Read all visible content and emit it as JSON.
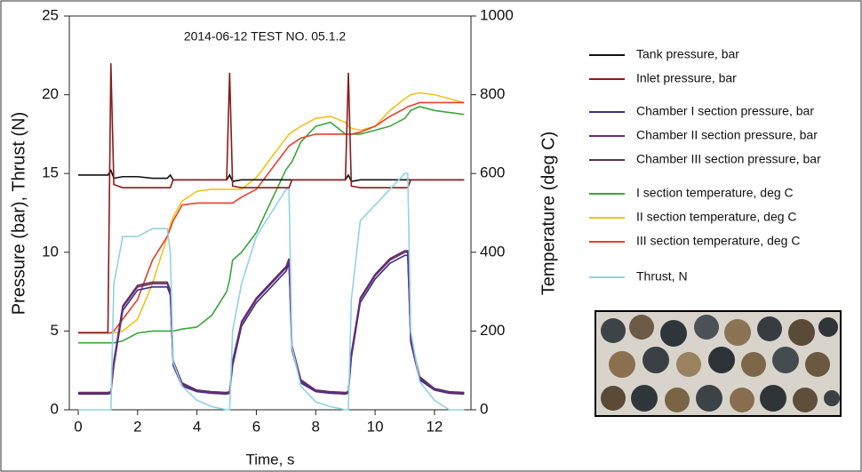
{
  "chart_data": {
    "type": "line",
    "title": "2014-06-12 TEST NO. 05.1.2",
    "xlabel": "Time, s",
    "ylabel": "Pressure (bar), Thrust (N)",
    "y2label": "Temperature (deg C)",
    "x": [
      0,
      0.5,
      1,
      1.1,
      1.2,
      1.5,
      2,
      2.5,
      3,
      3.1,
      3.2,
      3.5,
      4,
      4.5,
      5,
      5.1,
      5.2,
      5.5,
      6,
      6.5,
      7,
      7.1,
      7.2,
      7.5,
      8,
      8.5,
      9,
      9.1,
      9.2,
      9.5,
      10,
      10.5,
      11,
      11.1,
      11.2,
      11.5,
      12,
      12.5,
      13
    ],
    "xlim": [
      -0.3,
      13.23
    ],
    "xticks": [
      0,
      2,
      4,
      6,
      8,
      10,
      12
    ],
    "ylim": [
      0,
      25
    ],
    "yticks": [
      0,
      5,
      10,
      15,
      20,
      25
    ],
    "y2lim": [
      0,
      1000
    ],
    "y2ticks": [
      0,
      200,
      400,
      600,
      800,
      1000
    ],
    "series": [
      {
        "name": "Tank pressure, bar",
        "color": "#111111",
        "values": [
          14.9,
          14.9,
          14.9,
          15.2,
          14.7,
          14.8,
          14.8,
          14.7,
          14.7,
          14.9,
          14.6,
          14.6,
          14.6,
          14.6,
          14.6,
          14.9,
          14.5,
          14.6,
          14.6,
          14.6,
          14.6,
          14.6,
          14.6,
          14.6,
          14.6,
          14.6,
          14.6,
          14.9,
          14.5,
          14.6,
          14.6,
          14.6,
          14.6,
          14.6,
          14.6,
          14.6,
          14.6,
          14.6,
          14.6
        ]
      },
      {
        "name": "Inlet pressure, bar",
        "color": "#8b1a1a",
        "values": [
          4.9,
          4.9,
          4.9,
          22,
          14.3,
          14.1,
          14.1,
          14.1,
          14.1,
          14.1,
          14.6,
          14.6,
          14.6,
          14.6,
          14.6,
          21.4,
          14.2,
          14.1,
          14.1,
          14.1,
          14.1,
          14.1,
          14.6,
          14.6,
          14.6,
          14.6,
          14.6,
          21.4,
          14.2,
          14.1,
          14.1,
          14.1,
          14.1,
          14.1,
          14.6,
          14.6,
          14.6,
          14.6,
          14.6
        ]
      },
      {
        "name": "Chamber I section pressure, bar",
        "color": "#3a2f8a",
        "values": [
          1,
          1,
          1,
          1.05,
          2.8,
          6.3,
          7.6,
          7.8,
          7.8,
          7.3,
          2.8,
          1.5,
          1.15,
          1.05,
          1,
          1.05,
          2.8,
          5.3,
          6.8,
          7.8,
          8.8,
          9.3,
          3.8,
          1.7,
          1.15,
          1.05,
          1,
          1.05,
          3.3,
          6.8,
          8.3,
          9.3,
          9.8,
          9.8,
          4.3,
          1.9,
          1.25,
          1.05,
          1
        ]
      },
      {
        "name": "Chamber II section pressure, bar",
        "color": "#6a2a7a",
        "values": [
          1.05,
          1.05,
          1.05,
          1.1,
          3,
          6.5,
          7.8,
          8,
          8,
          7.5,
          3,
          1.6,
          1.2,
          1.1,
          1.05,
          1.1,
          3,
          5.5,
          7,
          8,
          9,
          9.5,
          4,
          1.8,
          1.2,
          1.1,
          1.05,
          1.1,
          3.5,
          7,
          8.5,
          9.5,
          10,
          10,
          4.5,
          2,
          1.3,
          1.1,
          1.05
        ]
      },
      {
        "name": "Chamber III section pressure, bar",
        "color": "#5a3050",
        "values": [
          1.1,
          1.1,
          1.1,
          1.15,
          3.1,
          6.6,
          7.9,
          8.1,
          8.1,
          7.6,
          3.1,
          1.7,
          1.25,
          1.15,
          1.1,
          1.15,
          3.1,
          5.6,
          7.1,
          8.1,
          9.1,
          9.6,
          4.1,
          1.9,
          1.25,
          1.15,
          1.1,
          1.15,
          3.6,
          7.1,
          8.6,
          9.6,
          10.1,
          10.1,
          4.6,
          2.1,
          1.35,
          1.15,
          1.1
        ]
      },
      {
        "name": "I section temperature, deg C",
        "color": "#3aa63a",
        "axis": "y2",
        "values": [
          170,
          170,
          170,
          170,
          170,
          175,
          195,
          200,
          200,
          200,
          200,
          205,
          210,
          240,
          300,
          330,
          380,
          400,
          450,
          530,
          610,
          620,
          630,
          680,
          720,
          730,
          700,
          700,
          700,
          700,
          710,
          720,
          740,
          750,
          760,
          770,
          760,
          755,
          750
        ]
      },
      {
        "name": "II section temperature, deg C",
        "color": "#f2c21b",
        "axis": "y2",
        "values": [
          195,
          195,
          195,
          195,
          195,
          200,
          230,
          320,
          440,
          470,
          490,
          530,
          555,
          560,
          560,
          560,
          560,
          560,
          590,
          640,
          690,
          700,
          705,
          720,
          740,
          745,
          730,
          720,
          715,
          710,
          720,
          760,
          790,
          795,
          800,
          805,
          800,
          790,
          780
        ]
      },
      {
        "name": "III section temperature, deg C",
        "color": "#e8402a",
        "axis": "y2",
        "values": [
          195,
          195,
          195,
          195,
          200,
          230,
          280,
          380,
          440,
          460,
          480,
          520,
          525,
          525,
          525,
          525,
          525,
          540,
          560,
          610,
          660,
          670,
          675,
          690,
          700,
          700,
          700,
          700,
          700,
          705,
          720,
          745,
          765,
          770,
          772,
          780,
          780,
          780,
          780
        ]
      },
      {
        "name": "Thrust, N",
        "color": "#8fd3e8",
        "values": [
          0,
          0,
          0,
          0,
          8,
          11,
          11,
          11.5,
          11.5,
          10,
          3,
          1.5,
          0.6,
          0.2,
          0,
          0,
          5,
          8,
          11,
          12.5,
          14,
          14,
          4,
          1.5,
          0.5,
          0.2,
          0,
          0,
          7,
          12,
          13,
          14,
          15,
          15,
          5,
          1.8,
          0.6,
          0,
          0
        ]
      }
    ]
  }
}
